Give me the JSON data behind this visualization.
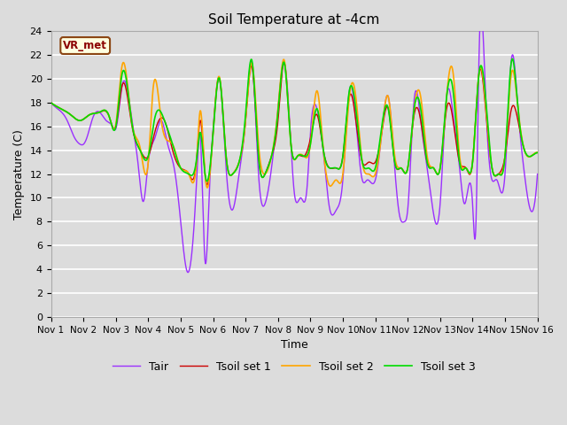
{
  "title": "Soil Temperature at -4cm",
  "xlabel": "Time",
  "ylabel": "Temperature (C)",
  "ylim": [
    0,
    24
  ],
  "yticks": [
    0,
    2,
    4,
    6,
    8,
    10,
    12,
    14,
    16,
    18,
    20,
    22,
    24
  ],
  "xtick_labels": [
    "Nov 1",
    "Nov 2",
    "Nov 3",
    "Nov 4",
    "Nov 5",
    "Nov 6",
    "Nov 7",
    "Nov 8",
    "Nov 9",
    "Nov 10",
    "Nov 11",
    "Nov 12",
    "Nov 13",
    "Nov 14",
    "Nov 15",
    "Nov 16"
  ],
  "colors": {
    "Tair": "#9B30FF",
    "Tsoil1": "#CC0000",
    "Tsoil2": "#FFA500",
    "Tsoil3": "#00DD00"
  },
  "legend_labels": [
    "Tair",
    "Tsoil set 1",
    "Tsoil set 2",
    "Tsoil set 3"
  ],
  "watermark_text": "VR_met",
  "bg_color": "#DCDCDC",
  "plot_bg_color": "#DCDCDC",
  "grid_color": "white",
  "figwidth": 6.4,
  "figheight": 4.8,
  "dpi": 100,
  "tair_keypoints": [
    [
      0.0,
      18.0
    ],
    [
      0.2,
      17.5
    ],
    [
      0.5,
      16.5
    ],
    [
      0.7,
      15.2
    ],
    [
      0.9,
      14.5
    ],
    [
      1.0,
      14.5
    ],
    [
      1.1,
      15.0
    ],
    [
      1.3,
      16.8
    ],
    [
      1.5,
      17.2
    ],
    [
      1.7,
      16.5
    ],
    [
      1.9,
      16.0
    ],
    [
      2.0,
      15.8
    ],
    [
      2.2,
      19.5
    ],
    [
      2.5,
      16.5
    ],
    [
      2.7,
      12.5
    ],
    [
      2.85,
      9.7
    ],
    [
      3.0,
      13.0
    ],
    [
      3.2,
      15.0
    ],
    [
      3.4,
      16.5
    ],
    [
      3.6,
      14.5
    ],
    [
      3.8,
      12.5
    ],
    [
      4.0,
      8.0
    ],
    [
      4.2,
      3.8
    ],
    [
      4.5,
      12.0
    ],
    [
      4.6,
      15.3
    ],
    [
      4.75,
      4.7
    ],
    [
      4.9,
      11.5
    ],
    [
      5.0,
      15.8
    ],
    [
      5.2,
      20.0
    ],
    [
      5.4,
      12.5
    ],
    [
      5.6,
      9.0
    ],
    [
      5.8,
      12.0
    ],
    [
      6.0,
      16.5
    ],
    [
      6.2,
      21.3
    ],
    [
      6.4,
      12.0
    ],
    [
      6.6,
      9.5
    ],
    [
      6.8,
      12.5
    ],
    [
      7.0,
      17.5
    ],
    [
      7.2,
      21.3
    ],
    [
      7.4,
      14.5
    ],
    [
      7.5,
      10.5
    ],
    [
      7.7,
      10.0
    ],
    [
      7.9,
      11.0
    ],
    [
      8.0,
      15.5
    ],
    [
      8.2,
      17.5
    ],
    [
      8.4,
      13.8
    ],
    [
      8.6,
      9.0
    ],
    [
      8.8,
      9.0
    ],
    [
      9.0,
      11.5
    ],
    [
      9.2,
      19.0
    ],
    [
      9.4,
      16.5
    ],
    [
      9.6,
      11.5
    ],
    [
      9.75,
      11.5
    ],
    [
      10.0,
      11.5
    ],
    [
      10.2,
      15.5
    ],
    [
      10.4,
      18.5
    ],
    [
      10.6,
      12.5
    ],
    [
      10.75,
      8.5
    ],
    [
      10.9,
      8.0
    ],
    [
      11.0,
      9.0
    ],
    [
      11.2,
      18.3
    ],
    [
      11.4,
      16.5
    ],
    [
      11.6,
      12.5
    ],
    [
      11.75,
      9.5
    ],
    [
      12.0,
      9.5
    ],
    [
      12.2,
      18.5
    ],
    [
      12.4,
      17.0
    ],
    [
      12.6,
      12.5
    ],
    [
      12.75,
      9.5
    ],
    [
      13.0,
      9.5
    ],
    [
      13.1,
      7.5
    ],
    [
      13.2,
      22.0
    ],
    [
      13.4,
      18.5
    ],
    [
      13.6,
      11.5
    ],
    [
      13.75,
      11.5
    ],
    [
      14.0,
      12.0
    ],
    [
      14.2,
      21.7
    ],
    [
      14.4,
      17.5
    ],
    [
      14.6,
      12.0
    ],
    [
      14.75,
      9.3
    ],
    [
      15.0,
      12.0
    ]
  ],
  "tsoil1_keypoints": [
    [
      0.0,
      18.0
    ],
    [
      0.3,
      17.5
    ],
    [
      0.6,
      17.0
    ],
    [
      0.9,
      16.5
    ],
    [
      1.2,
      17.0
    ],
    [
      1.5,
      17.2
    ],
    [
      1.8,
      16.8
    ],
    [
      2.0,
      16.0
    ],
    [
      2.2,
      19.5
    ],
    [
      2.5,
      16.0
    ],
    [
      2.75,
      14.0
    ],
    [
      3.0,
      13.5
    ],
    [
      3.2,
      15.5
    ],
    [
      3.5,
      16.5
    ],
    [
      3.75,
      14.0
    ],
    [
      4.0,
      12.5
    ],
    [
      4.25,
      12.0
    ],
    [
      4.5,
      13.5
    ],
    [
      4.6,
      16.5
    ],
    [
      4.75,
      12.0
    ],
    [
      5.0,
      15.5
    ],
    [
      5.2,
      20.0
    ],
    [
      5.4,
      13.5
    ],
    [
      5.6,
      12.0
    ],
    [
      5.8,
      13.0
    ],
    [
      6.0,
      16.5
    ],
    [
      6.2,
      21.0
    ],
    [
      6.4,
      13.5
    ],
    [
      6.6,
      12.0
    ],
    [
      6.8,
      13.5
    ],
    [
      7.0,
      16.5
    ],
    [
      7.2,
      21.3
    ],
    [
      7.4,
      14.5
    ],
    [
      7.6,
      13.5
    ],
    [
      7.8,
      13.5
    ],
    [
      8.0,
      15.0
    ],
    [
      8.2,
      17.0
    ],
    [
      8.4,
      14.0
    ],
    [
      8.6,
      12.5
    ],
    [
      8.8,
      12.5
    ],
    [
      9.0,
      13.5
    ],
    [
      9.2,
      18.5
    ],
    [
      9.4,
      16.5
    ],
    [
      9.6,
      13.0
    ],
    [
      9.8,
      13.0
    ],
    [
      10.0,
      13.0
    ],
    [
      10.2,
      15.5
    ],
    [
      10.4,
      17.5
    ],
    [
      10.6,
      13.0
    ],
    [
      10.8,
      12.5
    ],
    [
      11.0,
      12.5
    ],
    [
      11.2,
      17.0
    ],
    [
      11.4,
      16.5
    ],
    [
      11.6,
      13.0
    ],
    [
      11.8,
      12.5
    ],
    [
      12.0,
      12.5
    ],
    [
      12.2,
      17.5
    ],
    [
      12.4,
      16.5
    ],
    [
      12.6,
      13.0
    ],
    [
      12.8,
      12.5
    ],
    [
      13.0,
      13.0
    ],
    [
      13.2,
      20.5
    ],
    [
      13.4,
      17.5
    ],
    [
      13.6,
      12.5
    ],
    [
      13.8,
      12.0
    ],
    [
      14.0,
      13.5
    ],
    [
      14.2,
      17.5
    ],
    [
      14.4,
      16.5
    ],
    [
      14.6,
      14.0
    ],
    [
      14.8,
      13.5
    ],
    [
      15.0,
      13.8
    ]
  ],
  "tsoil2_keypoints": [
    [
      0.0,
      18.0
    ],
    [
      0.3,
      17.5
    ],
    [
      0.6,
      17.0
    ],
    [
      0.9,
      16.5
    ],
    [
      1.2,
      17.0
    ],
    [
      1.5,
      17.2
    ],
    [
      1.8,
      16.8
    ],
    [
      2.0,
      16.2
    ],
    [
      2.2,
      21.2
    ],
    [
      2.5,
      16.2
    ],
    [
      2.75,
      14.2
    ],
    [
      3.0,
      13.0
    ],
    [
      3.15,
      19.2
    ],
    [
      3.4,
      16.5
    ],
    [
      3.75,
      14.5
    ],
    [
      4.0,
      12.5
    ],
    [
      4.25,
      12.0
    ],
    [
      4.5,
      13.5
    ],
    [
      4.6,
      17.3
    ],
    [
      4.75,
      12.0
    ],
    [
      5.0,
      15.5
    ],
    [
      5.2,
      20.1
    ],
    [
      5.4,
      13.5
    ],
    [
      5.6,
      12.0
    ],
    [
      5.8,
      13.0
    ],
    [
      6.0,
      16.5
    ],
    [
      6.2,
      21.3
    ],
    [
      6.4,
      14.5
    ],
    [
      6.6,
      12.0
    ],
    [
      6.8,
      13.5
    ],
    [
      7.0,
      17.5
    ],
    [
      7.2,
      21.5
    ],
    [
      7.4,
      14.5
    ],
    [
      7.6,
      13.5
    ],
    [
      7.8,
      13.5
    ],
    [
      8.0,
      14.5
    ],
    [
      8.2,
      19.0
    ],
    [
      8.4,
      14.0
    ],
    [
      8.6,
      11.0
    ],
    [
      8.8,
      11.5
    ],
    [
      9.0,
      12.0
    ],
    [
      9.2,
      18.5
    ],
    [
      9.4,
      18.5
    ],
    [
      9.6,
      13.0
    ],
    [
      9.8,
      12.0
    ],
    [
      10.0,
      12.0
    ],
    [
      10.2,
      15.5
    ],
    [
      10.4,
      18.5
    ],
    [
      10.6,
      13.5
    ],
    [
      10.8,
      12.5
    ],
    [
      11.0,
      12.5
    ],
    [
      11.2,
      17.5
    ],
    [
      11.4,
      18.5
    ],
    [
      11.6,
      13.5
    ],
    [
      11.8,
      12.5
    ],
    [
      12.0,
      12.5
    ],
    [
      12.2,
      18.5
    ],
    [
      12.4,
      20.5
    ],
    [
      12.6,
      13.5
    ],
    [
      12.8,
      12.5
    ],
    [
      13.0,
      13.0
    ],
    [
      13.2,
      20.5
    ],
    [
      13.4,
      18.0
    ],
    [
      13.6,
      12.5
    ],
    [
      13.8,
      12.0
    ],
    [
      14.0,
      13.5
    ],
    [
      14.2,
      20.5
    ],
    [
      14.4,
      17.5
    ],
    [
      14.6,
      14.0
    ],
    [
      14.8,
      13.5
    ],
    [
      15.0,
      13.8
    ]
  ],
  "tsoil3_keypoints": [
    [
      0.0,
      18.0
    ],
    [
      0.3,
      17.5
    ],
    [
      0.6,
      17.0
    ],
    [
      0.9,
      16.5
    ],
    [
      1.2,
      17.0
    ],
    [
      1.5,
      17.2
    ],
    [
      1.8,
      16.8
    ],
    [
      2.0,
      16.0
    ],
    [
      2.2,
      20.5
    ],
    [
      2.5,
      16.2
    ],
    [
      2.75,
      14.0
    ],
    [
      3.0,
      13.5
    ],
    [
      3.2,
      16.7
    ],
    [
      3.5,
      16.5
    ],
    [
      3.75,
      14.5
    ],
    [
      4.0,
      12.5
    ],
    [
      4.25,
      12.0
    ],
    [
      4.5,
      13.5
    ],
    [
      4.6,
      15.5
    ],
    [
      4.75,
      12.0
    ],
    [
      5.0,
      15.5
    ],
    [
      5.2,
      20.0
    ],
    [
      5.4,
      13.5
    ],
    [
      5.6,
      12.0
    ],
    [
      5.8,
      13.0
    ],
    [
      6.0,
      17.0
    ],
    [
      6.2,
      21.5
    ],
    [
      6.4,
      13.5
    ],
    [
      6.6,
      12.0
    ],
    [
      6.8,
      13.5
    ],
    [
      7.0,
      17.2
    ],
    [
      7.2,
      21.3
    ],
    [
      7.4,
      14.5
    ],
    [
      7.6,
      13.5
    ],
    [
      7.8,
      13.5
    ],
    [
      8.0,
      14.5
    ],
    [
      8.2,
      17.5
    ],
    [
      8.4,
      14.0
    ],
    [
      8.6,
      12.5
    ],
    [
      8.8,
      12.5
    ],
    [
      9.0,
      13.5
    ],
    [
      9.2,
      19.0
    ],
    [
      9.4,
      17.5
    ],
    [
      9.6,
      13.0
    ],
    [
      9.8,
      12.5
    ],
    [
      10.0,
      12.5
    ],
    [
      10.2,
      16.0
    ],
    [
      10.4,
      17.5
    ],
    [
      10.6,
      13.0
    ],
    [
      10.8,
      12.5
    ],
    [
      11.0,
      12.5
    ],
    [
      11.2,
      17.5
    ],
    [
      11.4,
      17.5
    ],
    [
      11.6,
      13.0
    ],
    [
      11.8,
      12.5
    ],
    [
      12.0,
      12.5
    ],
    [
      12.2,
      18.5
    ],
    [
      12.4,
      19.0
    ],
    [
      12.6,
      13.0
    ],
    [
      12.8,
      12.5
    ],
    [
      13.0,
      13.0
    ],
    [
      13.2,
      20.5
    ],
    [
      13.4,
      18.5
    ],
    [
      13.6,
      12.5
    ],
    [
      13.8,
      12.0
    ],
    [
      14.0,
      13.5
    ],
    [
      14.2,
      21.5
    ],
    [
      14.4,
      17.5
    ],
    [
      14.6,
      14.0
    ],
    [
      14.8,
      13.5
    ],
    [
      15.0,
      13.8
    ]
  ]
}
